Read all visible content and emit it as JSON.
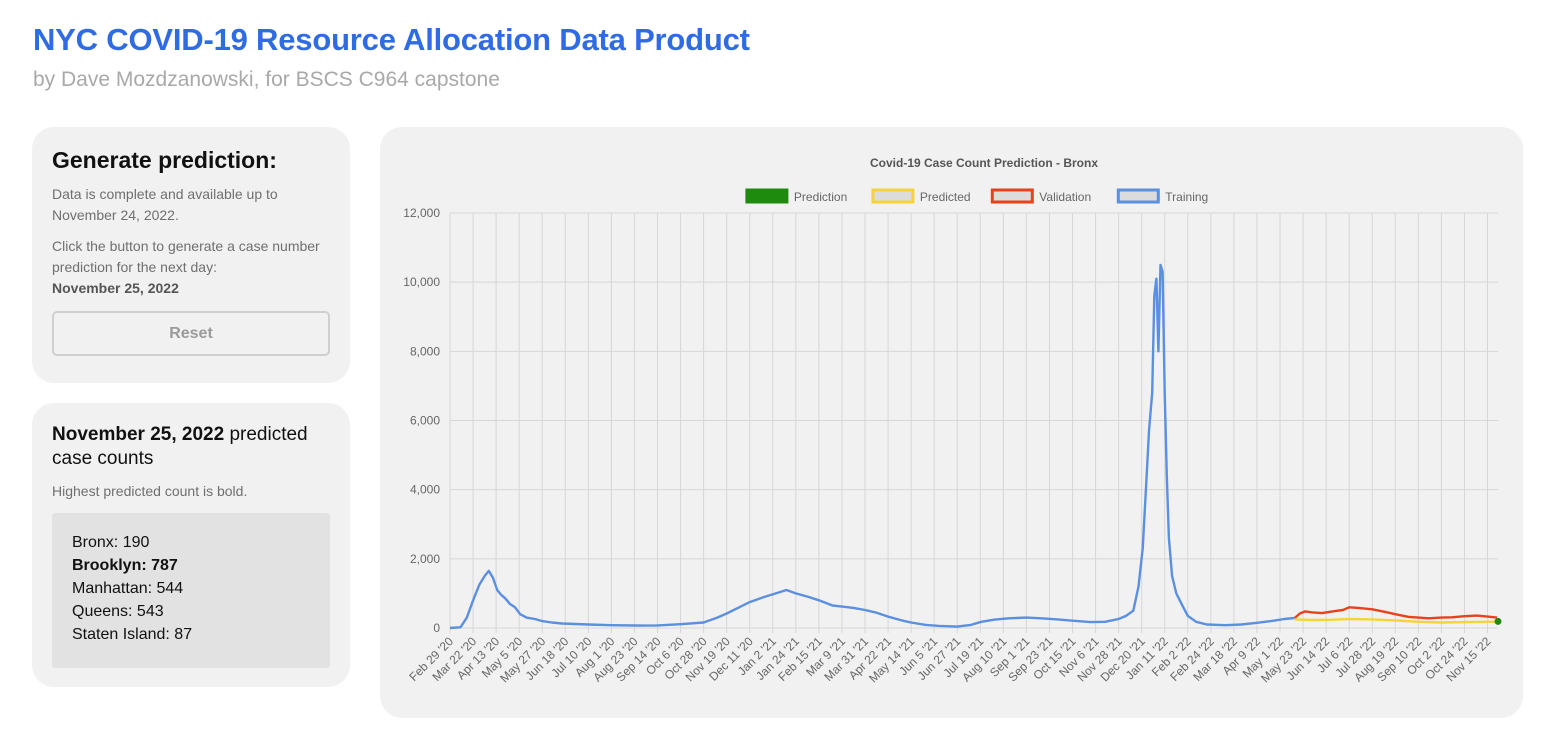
{
  "header": {
    "title": "NYC COVID-19 Resource Allocation Data Product",
    "subtitle": "by Dave Mozdzanowski, for BSCS C964 capstone"
  },
  "generate": {
    "heading": "Generate prediction:",
    "availability": "Data is complete and available up to November 24, 2022.",
    "instruction": "Click the button to generate a case number prediction for the next day:",
    "next_day": "November 25, 2022",
    "reset_label": "Reset"
  },
  "results": {
    "date": "November 25, 2022",
    "heading_suffix": " predicted case counts",
    "note": "Highest predicted count is bold.",
    "counts": [
      {
        "borough": "Bronx",
        "value": 190,
        "highest": false
      },
      {
        "borough": "Brooklyn",
        "value": 787,
        "highest": true
      },
      {
        "borough": "Manhattan",
        "value": 544,
        "highest": false
      },
      {
        "borough": "Queens",
        "value": 543,
        "highest": false
      },
      {
        "borough": "Staten Island",
        "value": 87,
        "highest": false
      }
    ]
  },
  "colors": {
    "accent": "#2f6be3",
    "training": "#5b8fe0",
    "validation": "#e8421c",
    "predicted": "#f5d33a",
    "prediction": "#1e8a0e"
  },
  "chart_data": {
    "type": "line",
    "title": "Covid-19 Case Count Prediction - Bronx",
    "legend": [
      "Prediction",
      "Predicted",
      "Validation",
      "Training"
    ],
    "legend_position": "top",
    "grid": true,
    "ylim": [
      0,
      12000
    ],
    "y_ticks": [
      "0",
      "2,000",
      "4,000",
      "6,000",
      "8,000",
      "10,000",
      "12,000"
    ],
    "x_start": "2020-02-29",
    "x_end": "2022-11-25",
    "x_tick_labels": [
      "Feb 29 '20",
      "Mar 22 '20",
      "Apr 13 '20",
      "May 5 '20",
      "May 27 '20",
      "Jun 18 '20",
      "Jul 10 '20",
      "Aug 1 '20",
      "Aug 23 '20",
      "Sep 14 '20",
      "Oct 6 '20",
      "Oct 28 '20",
      "Nov 19 '20",
      "Dec 11 '20",
      "Jan 2 '21",
      "Jan 24 '21",
      "Feb 15 '21",
      "Mar 9 '21",
      "Mar 31 '21",
      "Apr 22 '21",
      "May 14 '21",
      "Jun 5 '21",
      "Jun 27 '21",
      "Jul 19 '21",
      "Aug 10 '21",
      "Sep 1 '21",
      "Sep 23 '21",
      "Oct 15 '21",
      "Nov 6 '21",
      "Nov 28 '21",
      "Dec 20 '21",
      "Jan 11 '22",
      "Feb 2 '22",
      "Feb 24 '22",
      "Mar 18 '22",
      "Apr 9 '22",
      "May 1 '22",
      "May 23 '22",
      "Jun 14 '22",
      "Jul 6 '22",
      "Jul 28 '22",
      "Aug 19 '22",
      "Sep 10 '22",
      "Oct 2 '22",
      "Oct 24 '22",
      "Nov 15 '22"
    ],
    "series": [
      {
        "name": "Training",
        "points": [
          [
            "2020-02-29",
            0
          ],
          [
            "2020-03-10",
            20
          ],
          [
            "2020-03-16",
            300
          ],
          [
            "2020-03-22",
            800
          ],
          [
            "2020-03-28",
            1250
          ],
          [
            "2020-04-02",
            1500
          ],
          [
            "2020-04-06",
            1650
          ],
          [
            "2020-04-10",
            1450
          ],
          [
            "2020-04-14",
            1100
          ],
          [
            "2020-04-18",
            950
          ],
          [
            "2020-04-22",
            850
          ],
          [
            "2020-04-26",
            700
          ],
          [
            "2020-05-01",
            600
          ],
          [
            "2020-05-06",
            400
          ],
          [
            "2020-05-12",
            300
          ],
          [
            "2020-05-20",
            260
          ],
          [
            "2020-05-27",
            200
          ],
          [
            "2020-06-05",
            160
          ],
          [
            "2020-06-15",
            130
          ],
          [
            "2020-07-10",
            100
          ],
          [
            "2020-08-01",
            80
          ],
          [
            "2020-09-01",
            70
          ],
          [
            "2020-09-14",
            75
          ],
          [
            "2020-10-06",
            110
          ],
          [
            "2020-10-28",
            160
          ],
          [
            "2020-11-10",
            300
          ],
          [
            "2020-11-19",
            420
          ],
          [
            "2020-12-01",
            600
          ],
          [
            "2020-12-11",
            750
          ],
          [
            "2020-12-25",
            900
          ],
          [
            "2021-01-05",
            1000
          ],
          [
            "2021-01-15",
            1100
          ],
          [
            "2021-01-24",
            1000
          ],
          [
            "2021-02-05",
            900
          ],
          [
            "2021-02-15",
            800
          ],
          [
            "2021-02-28",
            650
          ],
          [
            "2021-03-09",
            620
          ],
          [
            "2021-03-20",
            580
          ],
          [
            "2021-03-31",
            520
          ],
          [
            "2021-04-10",
            450
          ],
          [
            "2021-04-22",
            330
          ],
          [
            "2021-05-05",
            220
          ],
          [
            "2021-05-14",
            160
          ],
          [
            "2021-05-28",
            90
          ],
          [
            "2021-06-10",
            60
          ],
          [
            "2021-06-27",
            40
          ],
          [
            "2021-07-10",
            90
          ],
          [
            "2021-07-20",
            180
          ],
          [
            "2021-08-01",
            240
          ],
          [
            "2021-08-15",
            280
          ],
          [
            "2021-09-01",
            300
          ],
          [
            "2021-09-15",
            280
          ],
          [
            "2021-10-01",
            250
          ],
          [
            "2021-10-15",
            210
          ],
          [
            "2021-11-01",
            170
          ],
          [
            "2021-11-15",
            180
          ],
          [
            "2021-11-28",
            260
          ],
          [
            "2021-12-05",
            350
          ],
          [
            "2021-12-12",
            500
          ],
          [
            "2021-12-17",
            1200
          ],
          [
            "2021-12-21",
            2300
          ],
          [
            "2021-12-24",
            4000
          ],
          [
            "2021-12-27",
            5700
          ],
          [
            "2021-12-30",
            6800
          ],
          [
            "2022-01-01",
            9600
          ],
          [
            "2022-01-03",
            10100
          ],
          [
            "2022-01-05",
            8000
          ],
          [
            "2022-01-07",
            10500
          ],
          [
            "2022-01-09",
            10300
          ],
          [
            "2022-01-11",
            6800
          ],
          [
            "2022-01-13",
            4400
          ],
          [
            "2022-01-15",
            2600
          ],
          [
            "2022-01-18",
            1500
          ],
          [
            "2022-01-22",
            1000
          ],
          [
            "2022-01-27",
            700
          ],
          [
            "2022-02-02",
            350
          ],
          [
            "2022-02-10",
            180
          ],
          [
            "2022-02-20",
            100
          ],
          [
            "2022-03-10",
            80
          ],
          [
            "2022-03-25",
            100
          ],
          [
            "2022-04-09",
            150
          ],
          [
            "2022-04-25",
            210
          ],
          [
            "2022-05-05",
            260
          ],
          [
            "2022-05-15",
            290
          ]
        ]
      },
      {
        "name": "Validation",
        "points": [
          [
            "2022-05-15",
            290
          ],
          [
            "2022-05-20",
            420
          ],
          [
            "2022-05-25",
            480
          ],
          [
            "2022-06-01",
            450
          ],
          [
            "2022-06-10",
            430
          ],
          [
            "2022-06-20",
            480
          ],
          [
            "2022-06-30",
            520
          ],
          [
            "2022-07-06",
            600
          ],
          [
            "2022-07-15",
            580
          ],
          [
            "2022-07-28",
            540
          ],
          [
            "2022-08-10",
            460
          ],
          [
            "2022-08-19",
            400
          ],
          [
            "2022-09-01",
            320
          ],
          [
            "2022-09-10",
            300
          ],
          [
            "2022-09-20",
            280
          ],
          [
            "2022-10-02",
            300
          ],
          [
            "2022-10-12",
            310
          ],
          [
            "2022-10-24",
            340
          ],
          [
            "2022-11-05",
            360
          ],
          [
            "2022-11-15",
            330
          ],
          [
            "2022-11-24",
            300
          ]
        ]
      },
      {
        "name": "Predicted",
        "points": [
          [
            "2022-05-15",
            250
          ],
          [
            "2022-06-01",
            230
          ],
          [
            "2022-06-20",
            240
          ],
          [
            "2022-07-06",
            260
          ],
          [
            "2022-07-28",
            250
          ],
          [
            "2022-08-19",
            220
          ],
          [
            "2022-09-10",
            180
          ],
          [
            "2022-10-02",
            160
          ],
          [
            "2022-10-24",
            170
          ],
          [
            "2022-11-15",
            180
          ],
          [
            "2022-11-24",
            185
          ]
        ]
      },
      {
        "name": "Prediction",
        "points": [
          [
            "2022-11-25",
            190
          ]
        ]
      }
    ]
  }
}
